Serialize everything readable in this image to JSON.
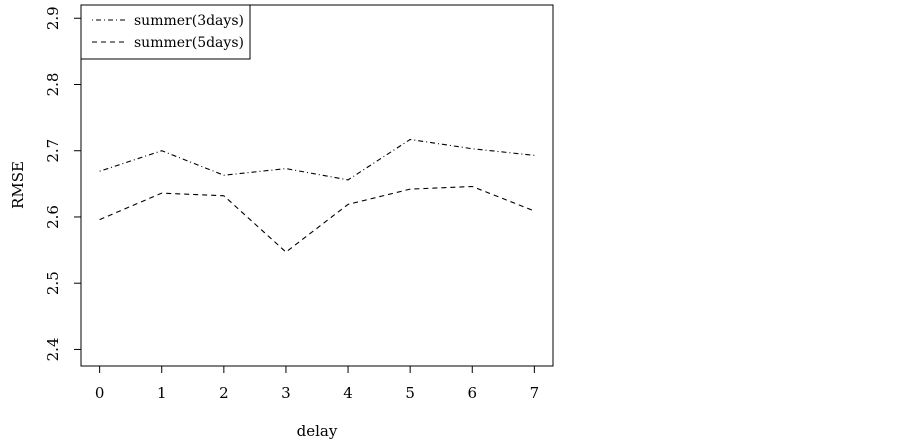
{
  "chart_data": {
    "type": "line",
    "title": "",
    "xlabel": "delay",
    "ylabel": "RMSE",
    "x": [
      0,
      1,
      2,
      3,
      4,
      5,
      6,
      7
    ],
    "xticks": [
      "0",
      "1",
      "2",
      "3",
      "4",
      "5",
      "6",
      "7"
    ],
    "yticks": [
      "2.4",
      "2.5",
      "2.6",
      "2.7",
      "2.8",
      "2.9"
    ],
    "xlim": [
      -0.3,
      7.3
    ],
    "ylim": [
      2.375,
      2.92
    ],
    "grid": false,
    "legend_position": "top-left",
    "series": [
      {
        "name": "summer(3days)",
        "dash": "dot-dash",
        "color": "#000000",
        "values": [
          2.669,
          2.7,
          2.663,
          2.673,
          2.656,
          2.717,
          2.703,
          2.693
        ]
      },
      {
        "name": "summer(5days)",
        "dash": "dash",
        "color": "#000000",
        "values": [
          2.596,
          2.636,
          2.632,
          2.547,
          2.619,
          2.642,
          2.646,
          2.609
        ]
      }
    ]
  }
}
